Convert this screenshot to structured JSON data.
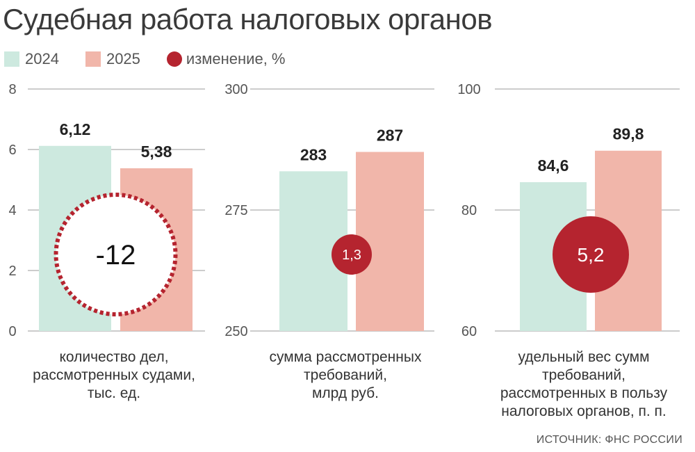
{
  "title": "Судебная работа налоговых органов",
  "legend": {
    "items": [
      {
        "label": "2024",
        "color": "#cde9df"
      },
      {
        "label": "2025",
        "color": "#f1b6aa"
      }
    ],
    "change": {
      "label": "изменение, %",
      "color": "#b5242f"
    }
  },
  "source": "ИСТОЧНИК: ФНС РОССИИ",
  "chart_data": [
    {
      "type": "bar",
      "categories": [
        "2024",
        "2025"
      ],
      "values": [
        6.12,
        5.38
      ],
      "value_labels": [
        "6,12",
        "5,38"
      ],
      "ylim": [
        0,
        8
      ],
      "yticks": [
        0,
        2,
        4,
        6,
        8
      ],
      "ytick_labels": [
        "0",
        "2",
        "4",
        "6",
        "8"
      ],
      "xlabel": [
        "количество дел,",
        "рассмотренных судами,",
        "тыс. ед."
      ],
      "change": {
        "value": -12,
        "label": "-12",
        "style": "dashed"
      }
    },
    {
      "type": "bar",
      "categories": [
        "2024",
        "2025"
      ],
      "values": [
        283,
        287
      ],
      "value_labels": [
        "283",
        "287"
      ],
      "ylim": [
        250,
        300
      ],
      "yticks": [
        250,
        275,
        300
      ],
      "ytick_labels": [
        "250",
        "275",
        "300"
      ],
      "xlabel": [
        "сумма рассмотренных",
        "требований,",
        "млрд руб."
      ],
      "change": {
        "value": 1.3,
        "label": "1,3",
        "style": "solid"
      }
    },
    {
      "type": "bar",
      "categories": [
        "2024",
        "2025"
      ],
      "values": [
        84.6,
        89.8
      ],
      "value_labels": [
        "84,6",
        "89,8"
      ],
      "ylim": [
        60,
        100
      ],
      "yticks": [
        60,
        80,
        100
      ],
      "ytick_labels": [
        "60",
        "80",
        "100"
      ],
      "xlabel": [
        "удельный вес сумм",
        "требований,",
        "рассмотренных в пользу",
        "налоговых органов, п. п."
      ],
      "change": {
        "value": 5.2,
        "label": "5,2",
        "style": "solid"
      }
    }
  ]
}
